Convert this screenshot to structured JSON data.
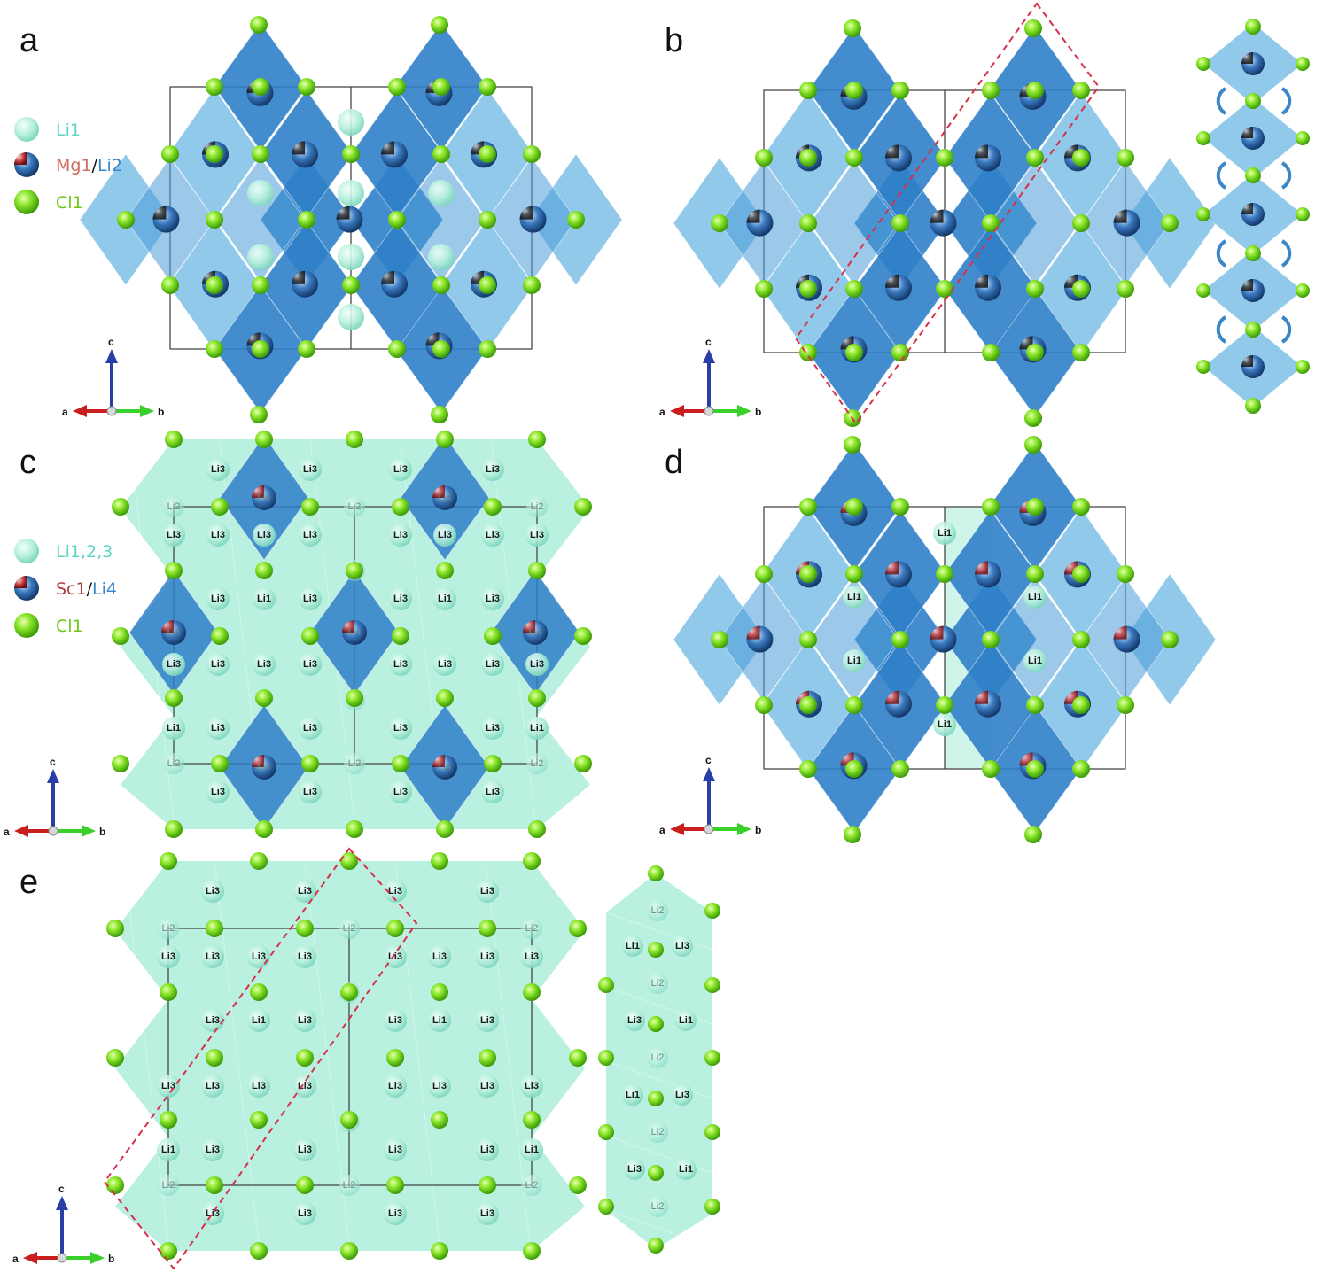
{
  "panels": [
    {
      "letter": "a"
    },
    {
      "letter": "b"
    },
    {
      "letter": "c"
    },
    {
      "letter": "d"
    },
    {
      "letter": "e"
    }
  ],
  "legend_a": {
    "li1": "Li1",
    "mg1": "Mg1",
    "slash": "/",
    "li2": "Li2",
    "cl1": "Cl1"
  },
  "legend_c": {
    "li123": "Li1,2,3",
    "sc1": "Sc1",
    "slash": "/",
    "li4": "Li4",
    "cl1": "Cl1"
  },
  "axes": {
    "c": "c",
    "a": "a",
    "b": "b"
  },
  "site_labels": {
    "li1": "Li1",
    "li2": "Li2",
    "li3": "Li3",
    "li4": "Li4"
  },
  "colors": {
    "cl_green": "#7ed321",
    "octa_dark": "#2f7fc8",
    "octa_mid": "#4a9ad8",
    "octa_light": "#7cbfe6",
    "li_teal": "#a8ecd8",
    "dash_red": "#d9304a"
  }
}
